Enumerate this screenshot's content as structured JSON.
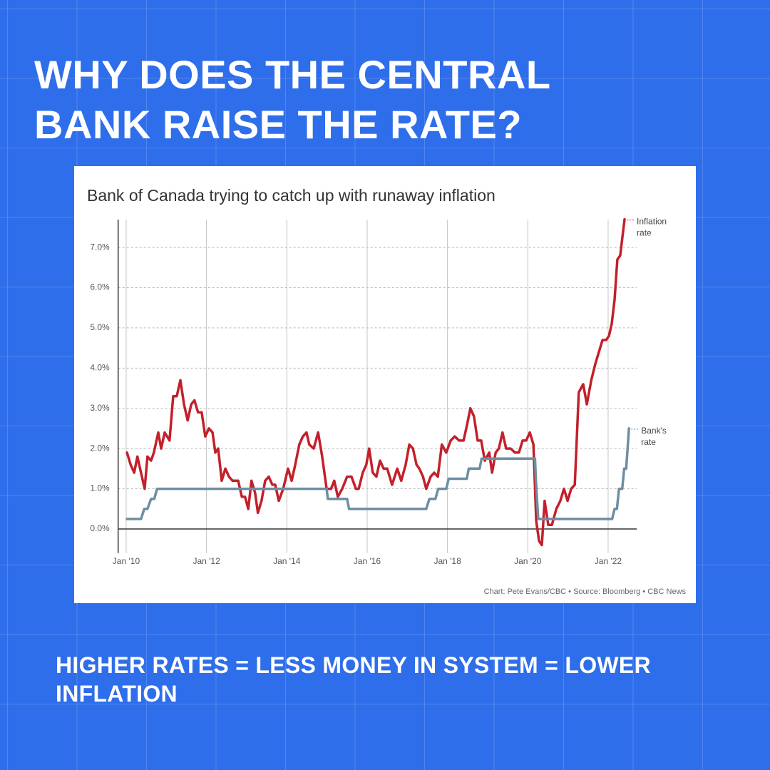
{
  "header": {
    "title": "WHY DOES THE CENTRAL BANK RAISE THE RATE?"
  },
  "footer": {
    "text": "HIGHER RATES = LESS MONEY IN SYSTEM = LOWER INFLATION"
  },
  "chart_data": {
    "type": "line",
    "title": "Bank of Canada trying to catch up with runaway inflation",
    "source": "Chart: Pete Evans/CBC • Source: Bloomberg • CBC News",
    "xlim": [
      2009.8,
      2022.75
    ],
    "ylim": [
      -0.6,
      7.8
    ],
    "grid": true,
    "xticks": [
      {
        "value": 2010,
        "label": "Jan '10"
      },
      {
        "value": 2012,
        "label": "Jan '12"
      },
      {
        "value": 2014,
        "label": "Jan '14"
      },
      {
        "value": 2016,
        "label": "Jan '16"
      },
      {
        "value": 2018,
        "label": "Jan '18"
      },
      {
        "value": 2020,
        "label": "Jan '20"
      },
      {
        "value": 2022,
        "label": "Jan '22"
      }
    ],
    "yticks": [
      {
        "value": 0,
        "label": "0.0%"
      },
      {
        "value": 1,
        "label": "1.0%"
      },
      {
        "value": 2,
        "label": "2.0%"
      },
      {
        "value": 3,
        "label": "3.0%"
      },
      {
        "value": 4,
        "label": "4.0%"
      },
      {
        "value": 5,
        "label": "5.0%"
      },
      {
        "value": 6,
        "label": "6.0%"
      },
      {
        "value": 7,
        "label": "7.0%"
      }
    ],
    "series": [
      {
        "name": "Inflation rate",
        "color": "#c3202b",
        "x": [
          2010.02,
          2010.11,
          2010.2,
          2010.28,
          2010.37,
          2010.46,
          2010.53,
          2010.62,
          2010.69,
          2010.8,
          2010.87,
          2010.96,
          2011.08,
          2011.17,
          2011.26,
          2011.35,
          2011.44,
          2011.53,
          2011.62,
          2011.7,
          2011.79,
          2011.88,
          2011.97,
          2012.06,
          2012.15,
          2012.22,
          2012.29,
          2012.38,
          2012.47,
          2012.56,
          2012.65,
          2012.79,
          2012.88,
          2012.96,
          2013.04,
          2013.12,
          2013.21,
          2013.28,
          2013.37,
          2013.46,
          2013.55,
          2013.64,
          2013.71,
          2013.8,
          2013.91,
          2014.03,
          2014.12,
          2014.21,
          2014.31,
          2014.4,
          2014.49,
          2014.56,
          2014.67,
          2014.78,
          2014.88,
          2014.99,
          2015.1,
          2015.18,
          2015.27,
          2015.38,
          2015.5,
          2015.61,
          2015.72,
          2015.79,
          2015.89,
          2015.98,
          2016.05,
          2016.14,
          2016.23,
          2016.32,
          2016.41,
          2016.5,
          2016.62,
          2016.75,
          2016.85,
          2016.96,
          2017.05,
          2017.14,
          2017.23,
          2017.3,
          2017.39,
          2017.47,
          2017.58,
          2017.67,
          2017.76,
          2017.86,
          2017.97,
          2018.08,
          2018.18,
          2018.29,
          2018.4,
          2018.49,
          2018.57,
          2018.66,
          2018.75,
          2018.84,
          2018.93,
          2019.04,
          2019.11,
          2019.2,
          2019.28,
          2019.37,
          2019.46,
          2019.57,
          2019.68,
          2019.78,
          2019.87,
          2019.96,
          2020.05,
          2020.14,
          2020.21,
          2020.28,
          2020.35,
          2020.42,
          2020.51,
          2020.6,
          2020.71,
          2020.81,
          2020.9,
          2020.99,
          2021.08,
          2021.17,
          2021.27,
          2021.38,
          2021.47,
          2021.58,
          2021.68,
          2021.77,
          2021.86,
          2021.95,
          2022.02,
          2022.09,
          2022.16,
          2022.23,
          2022.3,
          2022.41
        ],
        "values": [
          1.9,
          1.6,
          1.4,
          1.8,
          1.4,
          1.0,
          1.8,
          1.7,
          1.9,
          2.4,
          2.0,
          2.4,
          2.2,
          3.3,
          3.3,
          3.7,
          3.1,
          2.7,
          3.1,
          3.2,
          2.9,
          2.9,
          2.3,
          2.5,
          2.4,
          1.9,
          2.0,
          1.2,
          1.5,
          1.3,
          1.2,
          1.2,
          0.8,
          0.8,
          0.5,
          1.2,
          0.9,
          0.4,
          0.7,
          1.2,
          1.3,
          1.1,
          1.1,
          0.7,
          1.0,
          1.5,
          1.2,
          1.6,
          2.1,
          2.3,
          2.4,
          2.1,
          2.0,
          2.4,
          1.8,
          1.0,
          1.0,
          1.2,
          0.8,
          1.0,
          1.3,
          1.3,
          1.0,
          1.0,
          1.4,
          1.6,
          2.0,
          1.4,
          1.3,
          1.7,
          1.5,
          1.5,
          1.1,
          1.5,
          1.2,
          1.6,
          2.1,
          2.0,
          1.6,
          1.5,
          1.3,
          1.0,
          1.3,
          1.4,
          1.3,
          2.1,
          1.9,
          2.2,
          2.3,
          2.2,
          2.2,
          2.6,
          3.0,
          2.8,
          2.2,
          2.2,
          1.7,
          1.9,
          1.4,
          1.9,
          2.0,
          2.4,
          2.0,
          2.0,
          1.9,
          1.9,
          2.2,
          2.2,
          2.4,
          2.1,
          0.2,
          -0.3,
          -0.4,
          0.7,
          0.1,
          0.1,
          0.5,
          0.7,
          1.0,
          0.7,
          1.0,
          1.1,
          3.4,
          3.6,
          3.1,
          3.7,
          4.1,
          4.4,
          4.7,
          4.7,
          4.8,
          5.1,
          5.7,
          6.7,
          6.8,
          7.7
        ]
      },
      {
        "name": "Bank's rate",
        "color": "#6e8ea2",
        "x": [
          2010.02,
          2010.37,
          2010.45,
          2010.53,
          2010.62,
          2010.7,
          2010.77,
          2014.99,
          2015.02,
          2015.5,
          2015.55,
          2017.47,
          2017.55,
          2017.7,
          2017.77,
          2017.97,
          2018.03,
          2018.48,
          2018.53,
          2018.8,
          2018.85,
          2020.18,
          2020.2,
          2020.23,
          2020.26,
          2022.1,
          2022.16,
          2022.22,
          2022.27,
          2022.35,
          2022.4,
          2022.45,
          2022.52
        ],
        "values": [
          0.25,
          0.25,
          0.5,
          0.5,
          0.75,
          0.75,
          1.0,
          1.0,
          0.75,
          0.75,
          0.5,
          0.5,
          0.75,
          0.75,
          1.0,
          1.0,
          1.25,
          1.25,
          1.5,
          1.5,
          1.75,
          1.75,
          1.25,
          0.75,
          0.25,
          0.25,
          0.5,
          0.5,
          1.0,
          1.0,
          1.5,
          1.5,
          2.5
        ]
      }
    ]
  }
}
